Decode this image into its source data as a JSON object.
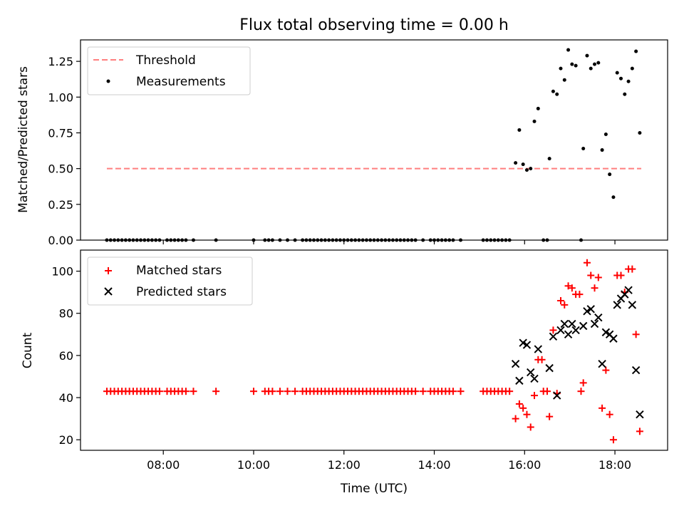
{
  "chart_data": [
    {
      "type": "scatter",
      "title": "Flux total observing time = 0.00 h",
      "ylabel": "Matched/Predicted stars",
      "xlabel": "",
      "xlim": [
        "06:10",
        "19:10"
      ],
      "ylim": [
        0,
        1.4
      ],
      "yticks": [
        "0.00",
        "0.25",
        "0.50",
        "0.75",
        "1.00",
        "1.25"
      ],
      "legend_position": "upper-left",
      "threshold": {
        "name": "Threshold",
        "value": 0.5,
        "x_range": [
          "06:45",
          "18:35"
        ],
        "color": "#ff7f7f",
        "style": "dashed"
      },
      "series": [
        {
          "name": "Measurements",
          "color": "#000000",
          "marker": "dot",
          "points": [
            [
              "06:45",
              0
            ],
            [
              "06:50",
              0
            ],
            [
              "06:55",
              0
            ],
            [
              "07:00",
              0
            ],
            [
              "07:05",
              0
            ],
            [
              "07:10",
              0
            ],
            [
              "07:15",
              0
            ],
            [
              "07:20",
              0
            ],
            [
              "07:25",
              0
            ],
            [
              "07:30",
              0
            ],
            [
              "07:35",
              0
            ],
            [
              "07:40",
              0
            ],
            [
              "07:45",
              0
            ],
            [
              "07:50",
              0
            ],
            [
              "07:55",
              0
            ],
            [
              "08:05",
              0
            ],
            [
              "08:10",
              0
            ],
            [
              "08:15",
              0
            ],
            [
              "08:20",
              0
            ],
            [
              "08:25",
              0
            ],
            [
              "08:30",
              0
            ],
            [
              "08:40",
              0
            ],
            [
              "09:10",
              0
            ],
            [
              "10:00",
              0
            ],
            [
              "10:15",
              0
            ],
            [
              "10:20",
              0
            ],
            [
              "10:25",
              0
            ],
            [
              "10:35",
              0
            ],
            [
              "10:45",
              0
            ],
            [
              "10:55",
              0
            ],
            [
              "11:05",
              0
            ],
            [
              "11:10",
              0
            ],
            [
              "11:15",
              0
            ],
            [
              "11:20",
              0
            ],
            [
              "11:25",
              0
            ],
            [
              "11:30",
              0
            ],
            [
              "11:35",
              0
            ],
            [
              "11:40",
              0
            ],
            [
              "11:45",
              0
            ],
            [
              "11:50",
              0
            ],
            [
              "11:55",
              0
            ],
            [
              "12:00",
              0
            ],
            [
              "12:05",
              0
            ],
            [
              "12:10",
              0
            ],
            [
              "12:15",
              0
            ],
            [
              "12:20",
              0
            ],
            [
              "12:25",
              0
            ],
            [
              "12:30",
              0
            ],
            [
              "12:35",
              0
            ],
            [
              "12:40",
              0
            ],
            [
              "12:45",
              0
            ],
            [
              "12:50",
              0
            ],
            [
              "12:55",
              0
            ],
            [
              "13:00",
              0
            ],
            [
              "13:05",
              0
            ],
            [
              "13:10",
              0
            ],
            [
              "13:15",
              0
            ],
            [
              "13:20",
              0
            ],
            [
              "13:25",
              0
            ],
            [
              "13:30",
              0
            ],
            [
              "13:35",
              0
            ],
            [
              "13:45",
              0
            ],
            [
              "13:55",
              0
            ],
            [
              "14:00",
              0
            ],
            [
              "14:05",
              0
            ],
            [
              "14:10",
              0
            ],
            [
              "14:15",
              0
            ],
            [
              "14:20",
              0
            ],
            [
              "14:25",
              0
            ],
            [
              "14:35",
              0
            ],
            [
              "15:05",
              0
            ],
            [
              "15:10",
              0
            ],
            [
              "15:15",
              0
            ],
            [
              "15:20",
              0
            ],
            [
              "15:25",
              0
            ],
            [
              "15:30",
              0
            ],
            [
              "15:35",
              0
            ],
            [
              "15:40",
              0
            ],
            [
              "16:25",
              0
            ],
            [
              "16:30",
              0
            ],
            [
              "17:15",
              0
            ],
            [
              "15:48",
              0.54
            ],
            [
              "15:53",
              0.77
            ],
            [
              "15:58",
              0.53
            ],
            [
              "16:03",
              0.49
            ],
            [
              "16:08",
              0.5
            ],
            [
              "16:13",
              0.83
            ],
            [
              "16:18",
              0.92
            ],
            [
              "16:33",
              0.57
            ],
            [
              "16:38",
              1.04
            ],
            [
              "16:43",
              1.02
            ],
            [
              "16:48",
              1.2
            ],
            [
              "16:53",
              1.12
            ],
            [
              "16:58",
              1.33
            ],
            [
              "17:03",
              1.23
            ],
            [
              "17:08",
              1.22
            ],
            [
              "17:18",
              0.64
            ],
            [
              "17:23",
              1.29
            ],
            [
              "17:28",
              1.2
            ],
            [
              "17:33",
              1.23
            ],
            [
              "17:38",
              1.24
            ],
            [
              "17:43",
              0.63
            ],
            [
              "17:48",
              0.74
            ],
            [
              "17:53",
              0.46
            ],
            [
              "17:58",
              0.3
            ],
            [
              "18:03",
              1.17
            ],
            [
              "18:08",
              1.13
            ],
            [
              "18:13",
              1.02
            ],
            [
              "18:18",
              1.11
            ],
            [
              "18:23",
              1.2
            ],
            [
              "18:28",
              1.32
            ],
            [
              "18:33",
              0.75
            ]
          ]
        }
      ]
    },
    {
      "type": "scatter",
      "title": "",
      "ylabel": "Count",
      "xlabel": "Time (UTC)",
      "xlim": [
        "06:10",
        "19:10"
      ],
      "ylim": [
        15,
        110
      ],
      "yticks": [
        "20",
        "40",
        "60",
        "80",
        "100"
      ],
      "xticks": [
        "08:00",
        "10:00",
        "12:00",
        "14:00",
        "16:00",
        "18:00"
      ],
      "legend_position": "upper-left",
      "series": [
        {
          "name": "Matched stars",
          "color": "#ff0000",
          "marker": "plus",
          "points": [
            [
              "06:45",
              43
            ],
            [
              "06:50",
              43
            ],
            [
              "06:55",
              43
            ],
            [
              "07:00",
              43
            ],
            [
              "07:05",
              43
            ],
            [
              "07:10",
              43
            ],
            [
              "07:15",
              43
            ],
            [
              "07:20",
              43
            ],
            [
              "07:25",
              43
            ],
            [
              "07:30",
              43
            ],
            [
              "07:35",
              43
            ],
            [
              "07:40",
              43
            ],
            [
              "07:45",
              43
            ],
            [
              "07:50",
              43
            ],
            [
              "07:55",
              43
            ],
            [
              "08:05",
              43
            ],
            [
              "08:10",
              43
            ],
            [
              "08:15",
              43
            ],
            [
              "08:20",
              43
            ],
            [
              "08:25",
              43
            ],
            [
              "08:30",
              43
            ],
            [
              "08:40",
              43
            ],
            [
              "09:10",
              43
            ],
            [
              "10:00",
              43
            ],
            [
              "10:15",
              43
            ],
            [
              "10:20",
              43
            ],
            [
              "10:25",
              43
            ],
            [
              "10:35",
              43
            ],
            [
              "10:45",
              43
            ],
            [
              "10:55",
              43
            ],
            [
              "11:05",
              43
            ],
            [
              "11:10",
              43
            ],
            [
              "11:15",
              43
            ],
            [
              "11:20",
              43
            ],
            [
              "11:25",
              43
            ],
            [
              "11:30",
              43
            ],
            [
              "11:35",
              43
            ],
            [
              "11:40",
              43
            ],
            [
              "11:45",
              43
            ],
            [
              "11:50",
              43
            ],
            [
              "11:55",
              43
            ],
            [
              "12:00",
              43
            ],
            [
              "12:05",
              43
            ],
            [
              "12:10",
              43
            ],
            [
              "12:15",
              43
            ],
            [
              "12:20",
              43
            ],
            [
              "12:25",
              43
            ],
            [
              "12:30",
              43
            ],
            [
              "12:35",
              43
            ],
            [
              "12:40",
              43
            ],
            [
              "12:45",
              43
            ],
            [
              "12:50",
              43
            ],
            [
              "12:55",
              43
            ],
            [
              "13:00",
              43
            ],
            [
              "13:05",
              43
            ],
            [
              "13:10",
              43
            ],
            [
              "13:15",
              43
            ],
            [
              "13:20",
              43
            ],
            [
              "13:25",
              43
            ],
            [
              "13:30",
              43
            ],
            [
              "13:35",
              43
            ],
            [
              "13:45",
              43
            ],
            [
              "13:55",
              43
            ],
            [
              "14:00",
              43
            ],
            [
              "14:05",
              43
            ],
            [
              "14:10",
              43
            ],
            [
              "14:15",
              43
            ],
            [
              "14:20",
              43
            ],
            [
              "14:25",
              43
            ],
            [
              "14:35",
              43
            ],
            [
              "15:05",
              43
            ],
            [
              "15:10",
              43
            ],
            [
              "15:15",
              43
            ],
            [
              "15:20",
              43
            ],
            [
              "15:25",
              43
            ],
            [
              "15:30",
              43
            ],
            [
              "15:35",
              43
            ],
            [
              "15:40",
              43
            ],
            [
              "16:25",
              43
            ],
            [
              "16:30",
              43
            ],
            [
              "17:15",
              43
            ],
            [
              "15:48",
              30
            ],
            [
              "15:53",
              37
            ],
            [
              "15:58",
              35
            ],
            [
              "16:03",
              32
            ],
            [
              "16:08",
              26
            ],
            [
              "16:13",
              41
            ],
            [
              "16:18",
              58
            ],
            [
              "16:23",
              58
            ],
            [
              "16:33",
              31
            ],
            [
              "16:38",
              72
            ],
            [
              "16:43",
              42
            ],
            [
              "16:48",
              86
            ],
            [
              "16:53",
              84
            ],
            [
              "16:58",
              93
            ],
            [
              "17:03",
              92
            ],
            [
              "17:08",
              89
            ],
            [
              "17:13",
              89
            ],
            [
              "17:18",
              47
            ],
            [
              "17:23",
              104
            ],
            [
              "17:28",
              98
            ],
            [
              "17:33",
              92
            ],
            [
              "17:38",
              97
            ],
            [
              "17:43",
              35
            ],
            [
              "17:48",
              53
            ],
            [
              "17:53",
              32
            ],
            [
              "17:58",
              20
            ],
            [
              "18:03",
              98
            ],
            [
              "18:08",
              98
            ],
            [
              "18:13",
              90
            ],
            [
              "18:18",
              101
            ],
            [
              "18:23",
              101
            ],
            [
              "18:28",
              70
            ],
            [
              "18:33",
              24
            ]
          ]
        },
        {
          "name": "Predicted stars",
          "color": "#000000",
          "marker": "x",
          "points": [
            [
              "15:48",
              56
            ],
            [
              "15:53",
              48
            ],
            [
              "15:58",
              66
            ],
            [
              "16:03",
              65
            ],
            [
              "16:08",
              52
            ],
            [
              "16:13",
              49
            ],
            [
              "16:18",
              63
            ],
            [
              "16:33",
              54
            ],
            [
              "16:38",
              69
            ],
            [
              "16:43",
              41
            ],
            [
              "16:48",
              72
            ],
            [
              "16:53",
              75
            ],
            [
              "16:58",
              70
            ],
            [
              "17:03",
              75
            ],
            [
              "17:08",
              72
            ],
            [
              "17:18",
              74
            ],
            [
              "17:23",
              81
            ],
            [
              "17:28",
              82
            ],
            [
              "17:33",
              75
            ],
            [
              "17:38",
              78
            ],
            [
              "17:43",
              56
            ],
            [
              "17:48",
              71
            ],
            [
              "17:53",
              70
            ],
            [
              "17:58",
              68
            ],
            [
              "18:03",
              84
            ],
            [
              "18:08",
              87
            ],
            [
              "18:13",
              89
            ],
            [
              "18:18",
              91
            ],
            [
              "18:23",
              84
            ],
            [
              "18:28",
              53
            ],
            [
              "18:33",
              32
            ]
          ]
        }
      ]
    }
  ]
}
